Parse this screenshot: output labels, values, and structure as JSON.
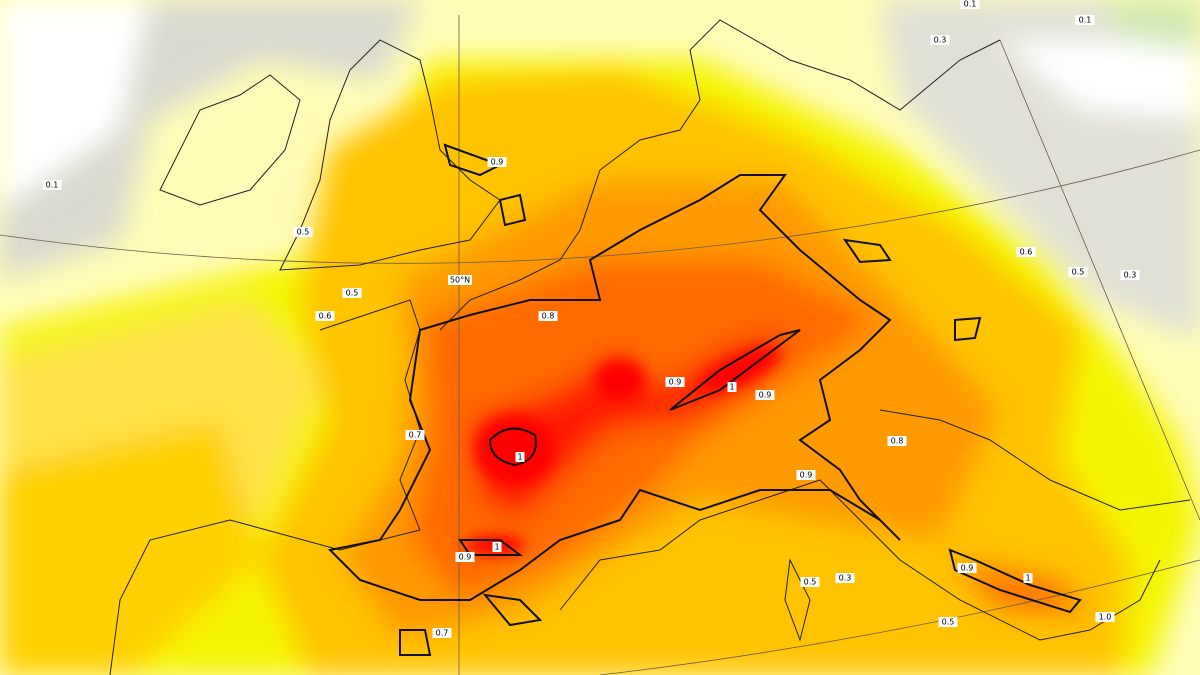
{
  "map": {
    "graticule_label": "50°N",
    "contour_labels": [
      "0.1",
      "0.1",
      "0.1",
      "0.3",
      "0.5",
      "0.5",
      "0.6",
      "0.9",
      "0.8",
      "0.9",
      "1",
      "0.9",
      "1",
      "0.9",
      "1",
      "0.9",
      "0.8",
      "0.6",
      "0.5",
      "0.3",
      "0.5",
      "0.3",
      "0.7",
      "0.5",
      "0.9",
      "1",
      "1.0",
      "0.7"
    ]
  }
}
